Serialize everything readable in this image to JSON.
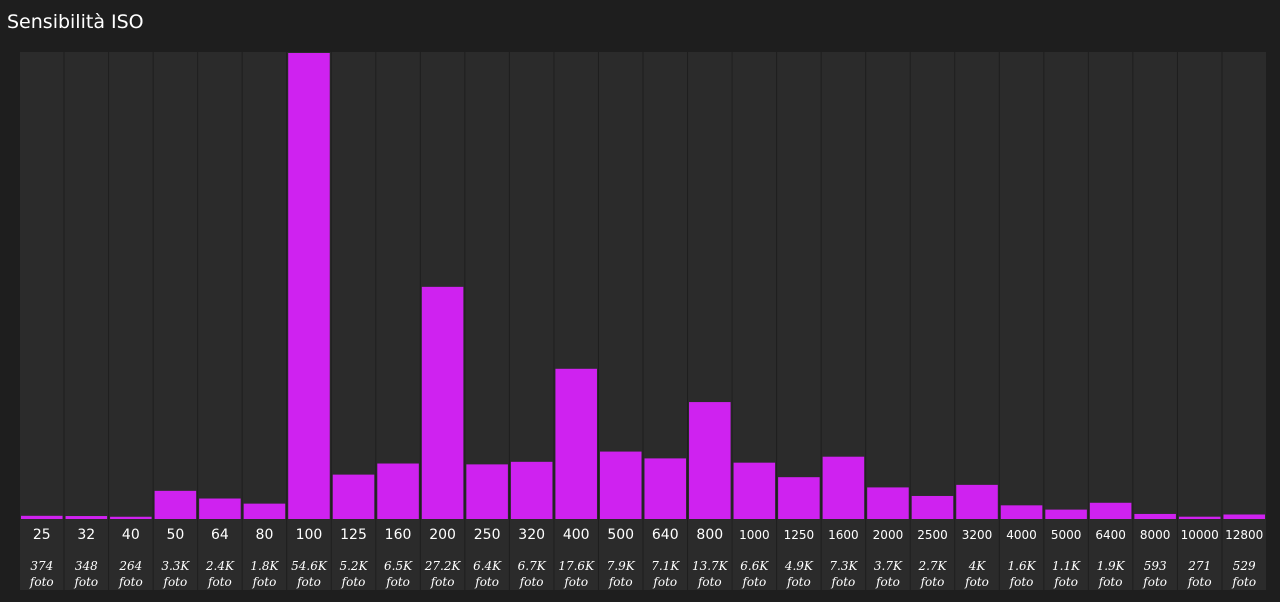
{
  "header": {
    "title": "Sensibilità ISO"
  },
  "colors": {
    "background": "#1e1e1e",
    "column": "#2b2b2b",
    "bar": "#cf22f0",
    "text": "#ffffff"
  },
  "chart_data": {
    "type": "bar",
    "title": "Sensibilità ISO",
    "xlabel": "",
    "ylabel": "",
    "grid": false,
    "categories": [
      "25",
      "32",
      "40",
      "50",
      "64",
      "80",
      "100",
      "125",
      "160",
      "200",
      "250",
      "320",
      "400",
      "500",
      "640",
      "800",
      "1000",
      "1250",
      "1600",
      "2000",
      "2500",
      "3200",
      "4000",
      "5000",
      "6400",
      "8000",
      "10000",
      "12800"
    ],
    "values": [
      374,
      348,
      264,
      3300,
      2400,
      1800,
      54600,
      5200,
      6500,
      27200,
      6400,
      6700,
      17600,
      7900,
      7100,
      13700,
      6600,
      4900,
      7300,
      3700,
      2700,
      4000,
      1600,
      1100,
      1900,
      593,
      271,
      529
    ],
    "value_labels": [
      "374",
      "348",
      "264",
      "3.3K",
      "2.4K",
      "1.8K",
      "54.6K",
      "5.2K",
      "6.5K",
      "27.2K",
      "6.4K",
      "6.7K",
      "17.6K",
      "7.9K",
      "7.1K",
      "13.7K",
      "6.6K",
      "4.9K",
      "7.3K",
      "3.7K",
      "2.7K",
      "4K",
      "1.6K",
      "1.1K",
      "1.9K",
      "593",
      "271",
      "529"
    ],
    "unit": "foto",
    "ylim": [
      0,
      54600
    ]
  }
}
